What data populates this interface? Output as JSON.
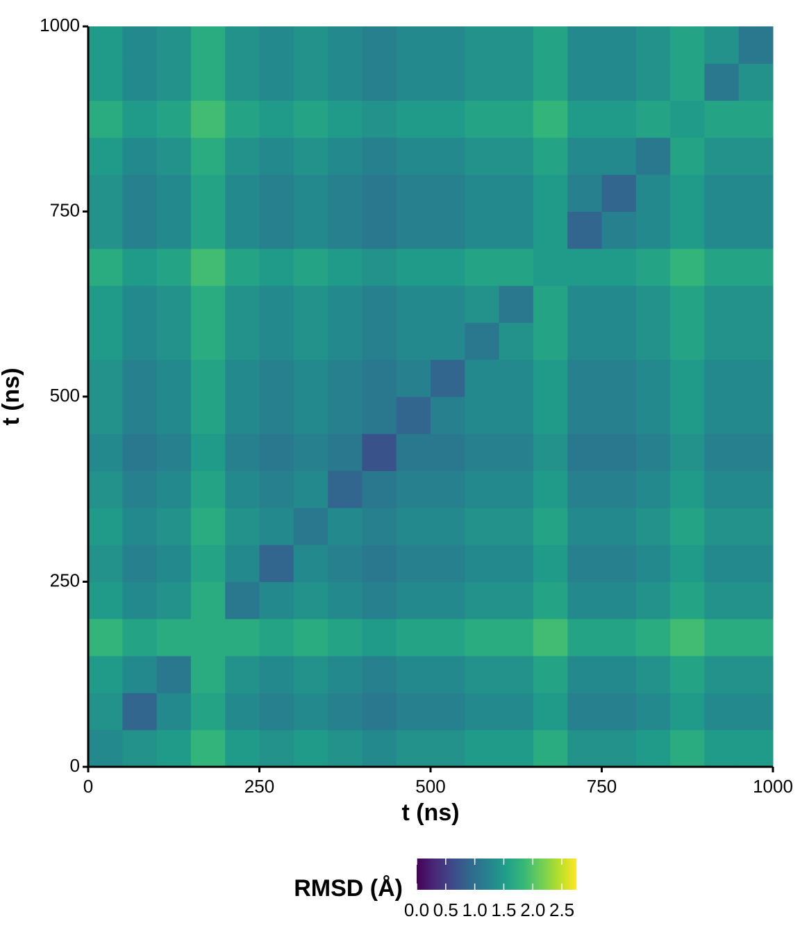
{
  "chart_data": {
    "type": "heatmap",
    "xlabel": "t (ns)",
    "ylabel": "t (ns)",
    "x_bins": [
      0,
      50,
      100,
      150,
      200,
      250,
      300,
      350,
      400,
      450,
      500,
      550,
      600,
      650,
      700,
      750,
      800,
      850,
      900,
      950,
      1000
    ],
    "y_bins": [
      0,
      50,
      100,
      150,
      200,
      250,
      300,
      350,
      400,
      450,
      500,
      550,
      600,
      650,
      700,
      750,
      800,
      850,
      900,
      950,
      1000
    ],
    "values": [
      [
        1.3,
        1.4,
        1.5,
        1.8,
        1.5,
        1.4,
        1.5,
        1.4,
        1.3,
        1.4,
        1.4,
        1.5,
        1.5,
        1.7,
        1.4,
        1.4,
        1.5,
        1.7,
        1.5,
        1.5
      ],
      [
        1.4,
        0.9,
        1.3,
        1.6,
        1.3,
        1.2,
        1.3,
        1.2,
        1.1,
        1.2,
        1.2,
        1.3,
        1.3,
        1.5,
        1.2,
        1.2,
        1.3,
        1.5,
        1.3,
        1.3
      ],
      [
        1.5,
        1.3,
        1.1,
        1.7,
        1.4,
        1.3,
        1.4,
        1.3,
        1.2,
        1.3,
        1.3,
        1.4,
        1.4,
        1.6,
        1.3,
        1.3,
        1.4,
        1.6,
        1.4,
        1.4
      ],
      [
        1.8,
        1.6,
        1.7,
        1.7,
        1.7,
        1.6,
        1.7,
        1.6,
        1.5,
        1.6,
        1.6,
        1.7,
        1.7,
        1.9,
        1.6,
        1.6,
        1.7,
        1.9,
        1.7,
        1.7
      ],
      [
        1.5,
        1.3,
        1.4,
        1.7,
        1.1,
        1.3,
        1.4,
        1.3,
        1.2,
        1.3,
        1.3,
        1.4,
        1.4,
        1.6,
        1.3,
        1.3,
        1.4,
        1.6,
        1.4,
        1.4
      ],
      [
        1.4,
        1.2,
        1.3,
        1.6,
        1.3,
        0.9,
        1.3,
        1.2,
        1.1,
        1.2,
        1.2,
        1.3,
        1.3,
        1.5,
        1.2,
        1.2,
        1.3,
        1.5,
        1.3,
        1.3
      ],
      [
        1.5,
        1.3,
        1.4,
        1.7,
        1.4,
        1.3,
        1.1,
        1.3,
        1.2,
        1.3,
        1.3,
        1.4,
        1.4,
        1.6,
        1.3,
        1.3,
        1.4,
        1.6,
        1.4,
        1.4
      ],
      [
        1.4,
        1.2,
        1.3,
        1.6,
        1.3,
        1.2,
        1.3,
        0.9,
        1.1,
        1.2,
        1.2,
        1.3,
        1.3,
        1.5,
        1.2,
        1.2,
        1.3,
        1.5,
        1.3,
        1.3
      ],
      [
        1.3,
        1.1,
        1.2,
        1.5,
        1.2,
        1.1,
        1.2,
        1.1,
        0.7,
        1.1,
        1.1,
        1.2,
        1.2,
        1.4,
        1.1,
        1.1,
        1.2,
        1.4,
        1.2,
        1.2
      ],
      [
        1.4,
        1.2,
        1.3,
        1.6,
        1.3,
        1.2,
        1.3,
        1.2,
        1.1,
        0.9,
        1.2,
        1.3,
        1.3,
        1.5,
        1.2,
        1.2,
        1.3,
        1.5,
        1.3,
        1.3
      ],
      [
        1.4,
        1.2,
        1.3,
        1.6,
        1.3,
        1.2,
        1.3,
        1.2,
        1.1,
        1.2,
        0.9,
        1.3,
        1.3,
        1.5,
        1.2,
        1.2,
        1.3,
        1.5,
        1.3,
        1.3
      ],
      [
        1.5,
        1.3,
        1.4,
        1.7,
        1.4,
        1.3,
        1.4,
        1.3,
        1.2,
        1.3,
        1.3,
        1.1,
        1.4,
        1.6,
        1.3,
        1.3,
        1.4,
        1.6,
        1.4,
        1.4
      ],
      [
        1.5,
        1.3,
        1.4,
        1.7,
        1.4,
        1.3,
        1.4,
        1.3,
        1.2,
        1.3,
        1.3,
        1.4,
        1.1,
        1.6,
        1.3,
        1.3,
        1.4,
        1.6,
        1.4,
        1.4
      ],
      [
        1.7,
        1.5,
        1.6,
        1.9,
        1.6,
        1.5,
        1.6,
        1.5,
        1.4,
        1.5,
        1.5,
        1.6,
        1.6,
        1.5,
        1.5,
        1.5,
        1.6,
        1.8,
        1.6,
        1.6
      ],
      [
        1.4,
        1.2,
        1.3,
        1.6,
        1.3,
        1.2,
        1.3,
        1.2,
        1.1,
        1.2,
        1.2,
        1.3,
        1.3,
        1.5,
        0.9,
        1.2,
        1.3,
        1.5,
        1.3,
        1.3
      ],
      [
        1.4,
        1.2,
        1.3,
        1.6,
        1.3,
        1.2,
        1.3,
        1.2,
        1.1,
        1.2,
        1.2,
        1.3,
        1.3,
        1.5,
        1.2,
        0.9,
        1.3,
        1.5,
        1.3,
        1.3
      ],
      [
        1.5,
        1.3,
        1.4,
        1.7,
        1.4,
        1.3,
        1.4,
        1.3,
        1.2,
        1.3,
        1.3,
        1.4,
        1.4,
        1.6,
        1.3,
        1.3,
        1.1,
        1.6,
        1.4,
        1.4
      ],
      [
        1.7,
        1.5,
        1.6,
        1.9,
        1.6,
        1.5,
        1.6,
        1.5,
        1.4,
        1.5,
        1.5,
        1.6,
        1.6,
        1.8,
        1.5,
        1.5,
        1.6,
        1.5,
        1.6,
        1.6
      ],
      [
        1.5,
        1.3,
        1.4,
        1.7,
        1.4,
        1.3,
        1.4,
        1.3,
        1.2,
        1.3,
        1.3,
        1.4,
        1.4,
        1.6,
        1.3,
        1.3,
        1.4,
        1.6,
        1.1,
        1.4
      ],
      [
        1.5,
        1.3,
        1.4,
        1.7,
        1.4,
        1.3,
        1.4,
        1.3,
        1.2,
        1.3,
        1.3,
        1.4,
        1.4,
        1.6,
        1.3,
        1.3,
        1.4,
        1.6,
        1.4,
        1.1
      ]
    ],
    "xlim": [
      0,
      1000
    ],
    "ylim": [
      0,
      1000
    ],
    "xticks": [
      0,
      250,
      500,
      750,
      1000
    ],
    "yticks": [
      0,
      250,
      500,
      750,
      1000
    ],
    "colorbar_title": "RMSD (Å)",
    "clim": [
      0,
      2.75
    ],
    "cticks": [
      {
        "value": 0,
        "label": "0.0"
      },
      0.5,
      {
        "value": 1,
        "label": "1.0"
      },
      1.5,
      {
        "value": 2,
        "label": "2.0"
      },
      2.5
    ],
    "colormap": [
      "#440154",
      "#482878",
      "#3e4989",
      "#31688e",
      "#26828e",
      "#1f9e89",
      "#35b779",
      "#6ece58",
      "#b5de2b",
      "#fde725"
    ],
    "legend_position": "bottom"
  }
}
